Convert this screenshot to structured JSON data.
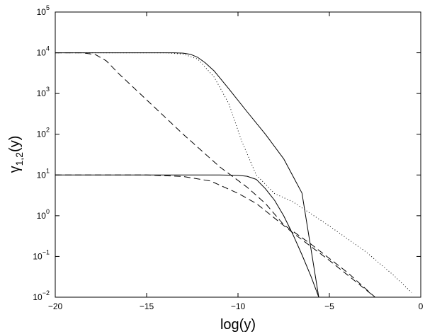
{
  "chart_data": {
    "type": "line",
    "title": "",
    "xlabel": "log(y)",
    "ylabel": {
      "base": "γ",
      "subscript": "1,2",
      "suffix": "(y)"
    },
    "xlim": [
      -20,
      0
    ],
    "ylim": [
      0.01,
      100000
    ],
    "yscale": "log",
    "grid": false,
    "legend": "none",
    "x_ticks": [
      {
        "value": -20,
        "label": "−20"
      },
      {
        "value": -15,
        "label": "−15"
      },
      {
        "value": -10,
        "label": "−10"
      },
      {
        "value": -5,
        "label": "−5"
      },
      {
        "value": 0,
        "label": "0"
      }
    ],
    "y_ticks": [
      {
        "value": 0.01,
        "base": "10",
        "exp": "−2"
      },
      {
        "value": 0.1,
        "base": "10",
        "exp": "−1"
      },
      {
        "value": 1,
        "base": "10",
        "exp": "0"
      },
      {
        "value": 10,
        "base": "10",
        "exp": "1"
      },
      {
        "value": 100,
        "base": "10",
        "exp": "2"
      },
      {
        "value": 1000,
        "base": "10",
        "exp": "3"
      },
      {
        "value": 10000,
        "base": "10",
        "exp": "4"
      },
      {
        "value": 100000,
        "base": "10",
        "exp": "5"
      }
    ],
    "series": [
      {
        "style": "solid",
        "x": [
          -20,
          -13.5,
          -13.0,
          -12.6,
          -12.2,
          -11.8,
          -11.3,
          -10.5,
          -9.5,
          -8.5,
          -7.5,
          -6.5,
          -5.58
        ],
        "y": [
          10000,
          10000,
          9800,
          9200,
          7700,
          5700,
          3560,
          1300,
          355,
          100,
          25,
          3.6,
          0.01
        ]
      },
      {
        "style": "dotted",
        "x": [
          -20,
          -14.0,
          -13.0,
          -12.2,
          -11.3,
          -10.5,
          -9.8,
          -9.0,
          -8.0,
          -7.0,
          -5.0,
          -3.0,
          -1.5,
          -0.5
        ],
        "y": [
          10000,
          10000,
          9300,
          7000,
          2500,
          560,
          68,
          10,
          3.5,
          2.2,
          0.56,
          0.13,
          0.035,
          0.013
        ]
      },
      {
        "style": "dashed",
        "x": [
          -20,
          -18.5,
          -17.8,
          -17.2,
          -16.5,
          -15.0,
          -13.0,
          -11.0,
          -9.5,
          -8.5,
          -7.5,
          -6.0,
          -4.0,
          -2.5
        ],
        "y": [
          10000,
          10000,
          9000,
          6300,
          3000,
          700,
          100,
          15.8,
          5,
          2,
          0.6,
          0.2,
          0.04,
          0.01
        ]
      },
      {
        "style": "solid",
        "x": [
          -20,
          -11.0,
          -10.0,
          -9.5,
          -9.0,
          -8.5,
          -8.0,
          -7.5,
          -7.0,
          -6.5,
          -6.0,
          -5.58
        ],
        "y": [
          10,
          10,
          9.8,
          9.3,
          7.8,
          4.6,
          2.4,
          1.0,
          0.35,
          0.11,
          0.032,
          0.01
        ]
      },
      {
        "style": "dashed",
        "x": [
          -20,
          -15.0,
          -13.0,
          -11.5,
          -10.0,
          -9.0,
          -7.0,
          -5.0,
          -4.0,
          -2.5
        ],
        "y": [
          10,
          10,
          9.2,
          7.1,
          3.55,
          2.0,
          0.38,
          0.08,
          0.035,
          0.01
        ]
      }
    ]
  }
}
